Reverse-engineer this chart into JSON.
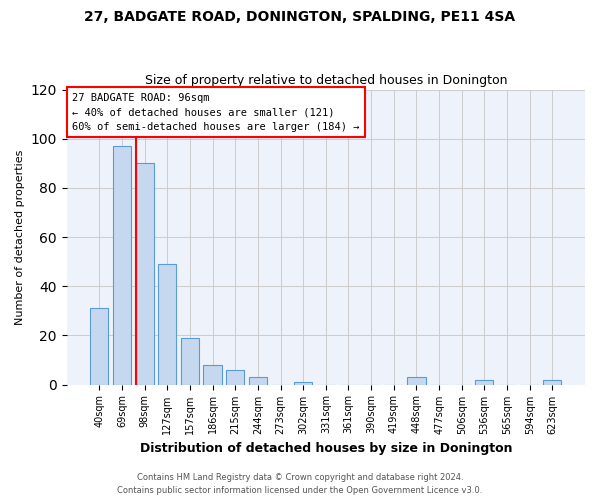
{
  "title": "27, BADGATE ROAD, DONINGTON, SPALDING, PE11 4SA",
  "subtitle": "Size of property relative to detached houses in Donington",
  "xlabel": "Distribution of detached houses by size in Donington",
  "ylabel": "Number of detached properties",
  "footnote1": "Contains HM Land Registry data © Crown copyright and database right 2024.",
  "footnote2": "Contains public sector information licensed under the Open Government Licence v3.0.",
  "categories": [
    "40sqm",
    "69sqm",
    "98sqm",
    "127sqm",
    "157sqm",
    "186sqm",
    "215sqm",
    "244sqm",
    "273sqm",
    "302sqm",
    "331sqm",
    "361sqm",
    "390sqm",
    "419sqm",
    "448sqm",
    "477sqm",
    "506sqm",
    "536sqm",
    "565sqm",
    "594sqm",
    "623sqm"
  ],
  "values": [
    31,
    97,
    90,
    49,
    19,
    8,
    6,
    3,
    0,
    1,
    0,
    0,
    0,
    0,
    3,
    0,
    0,
    2,
    0,
    0,
    2
  ],
  "bar_color": "#c5d8ef",
  "bar_edge_color": "#5b9bd5",
  "property_label": "27 BADGATE ROAD: 96sqm",
  "annotation_line1": "← 40% of detached houses are smaller (121)",
  "annotation_line2": "60% of semi-detached houses are larger (184) →",
  "vline_color": "red",
  "vline_position": 1.6,
  "ylim": [
    0,
    120
  ],
  "yticks": [
    0,
    20,
    40,
    60,
    80,
    100,
    120
  ],
  "grid_color": "#cccccc",
  "background_color": "#eef2fa"
}
